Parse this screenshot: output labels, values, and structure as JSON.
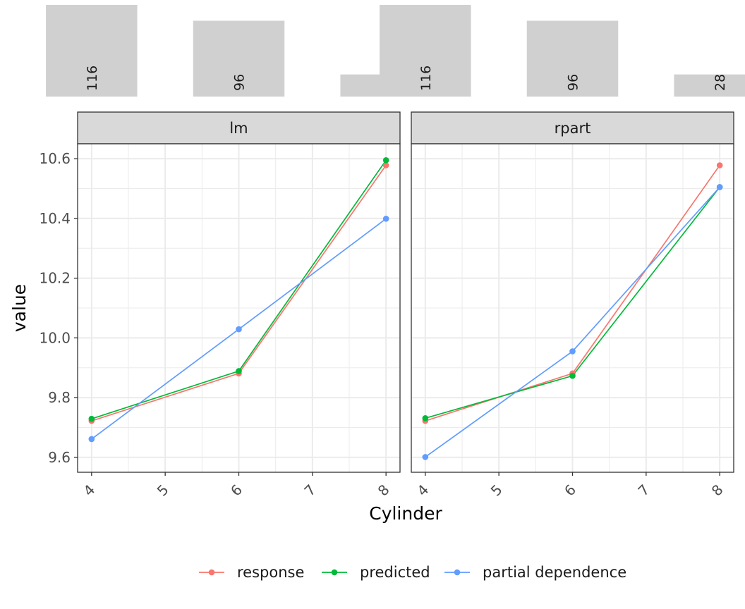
{
  "chart_data": {
    "type": "line",
    "xlabel": "Cylinder",
    "ylabel": "value",
    "x": [
      4,
      6,
      8
    ],
    "x_ticks": [
      "4",
      "5",
      "6",
      "7",
      "8"
    ],
    "xlim": [
      3.81,
      8.19
    ],
    "y_ticks": [
      "9.6",
      "9.8",
      "10.0",
      "10.2",
      "10.4",
      "10.6"
    ],
    "ylim": [
      9.55,
      10.65
    ],
    "grid": true,
    "legend_position": "bottom",
    "series_colors": {
      "response": "#F8766D",
      "predicted": "#00BA38",
      "partial dependence": "#619CFF"
    },
    "legend": [
      "response",
      "predicted",
      "partial dependence"
    ],
    "histogram": {
      "categories": [
        4,
        6,
        8
      ],
      "counts": [
        116,
        96,
        28
      ],
      "labels": [
        "116",
        "96",
        "28"
      ]
    },
    "panels": [
      {
        "title": "lm",
        "series": [
          {
            "name": "response",
            "values": [
              9.722,
              9.881,
              10.578
            ]
          },
          {
            "name": "predicted",
            "values": [
              9.729,
              9.889,
              10.595
            ]
          },
          {
            "name": "partial dependence",
            "values": [
              9.661,
              10.029,
              10.399
            ]
          }
        ]
      },
      {
        "title": "rpart",
        "series": [
          {
            "name": "response",
            "values": [
              9.722,
              9.881,
              10.578
            ]
          },
          {
            "name": "predicted",
            "values": [
              9.731,
              9.873,
              10.505
            ]
          },
          {
            "name": "partial dependence",
            "values": [
              9.601,
              9.955,
              10.505
            ]
          }
        ]
      }
    ]
  }
}
